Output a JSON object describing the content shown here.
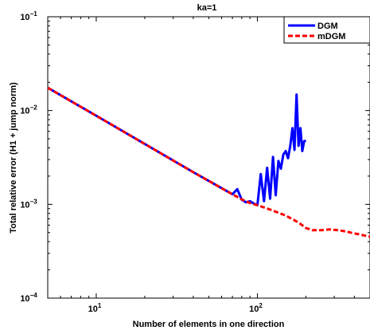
{
  "chart_data": {
    "type": "line",
    "title": "ka=1",
    "xlabel": "Number of elements in one direction",
    "ylabel": "Total relative error (H1 + jump norm)",
    "xscale": "log",
    "yscale": "log",
    "xlim": [
      5,
      500
    ],
    "ylim": [
      0.0001,
      0.1
    ],
    "grid": false,
    "legend_position": "top-right",
    "x_ticks": [
      {
        "value": 10,
        "base": "10",
        "exp": "1"
      },
      {
        "value": 100,
        "base": "10",
        "exp": "2"
      }
    ],
    "y_ticks": [
      {
        "value": 0.0001,
        "base": "10",
        "exp": "−4"
      },
      {
        "value": 0.001,
        "base": "10",
        "exp": "−3"
      },
      {
        "value": 0.01,
        "base": "10",
        "exp": "−2"
      },
      {
        "value": 0.1,
        "base": "10",
        "exp": "−1"
      }
    ],
    "series": [
      {
        "name": "DGM",
        "color": "#0000ff",
        "style": "solid",
        "x": [
          5,
          10,
          20,
          40,
          70,
          75,
          80,
          85,
          90,
          95,
          100,
          105,
          110,
          115,
          120,
          125,
          130,
          135,
          140,
          145,
          150,
          155,
          160,
          165,
          170,
          175,
          180,
          185,
          190,
          195,
          200
        ],
        "y": [
          0.0175,
          0.0088,
          0.0044,
          0.0022,
          0.00128,
          0.00145,
          0.00112,
          0.00105,
          0.00108,
          0.00102,
          0.00098,
          0.0021,
          0.00108,
          0.00245,
          0.00115,
          0.0032,
          0.00125,
          0.0029,
          0.0024,
          0.0034,
          0.0037,
          0.0031,
          0.0042,
          0.0065,
          0.0038,
          0.0148,
          0.0042,
          0.0065,
          0.0037,
          0.0047,
          0.0048
        ]
      },
      {
        "name": "mDGM",
        "color": "#ff0000",
        "style": "dashed",
        "x": [
          5,
          10,
          20,
          40,
          70,
          80,
          90,
          100,
          120,
          150,
          180,
          200,
          220,
          250,
          280,
          320,
          360,
          400,
          450,
          500
        ],
        "y": [
          0.0175,
          0.0088,
          0.0044,
          0.0022,
          0.00128,
          0.00113,
          0.00103,
          0.00098,
          0.00088,
          0.00076,
          0.00064,
          0.00056,
          0.00053,
          0.00053,
          0.00054,
          0.00053,
          0.00051,
          0.00049,
          0.00047,
          0.00045
        ]
      }
    ]
  }
}
